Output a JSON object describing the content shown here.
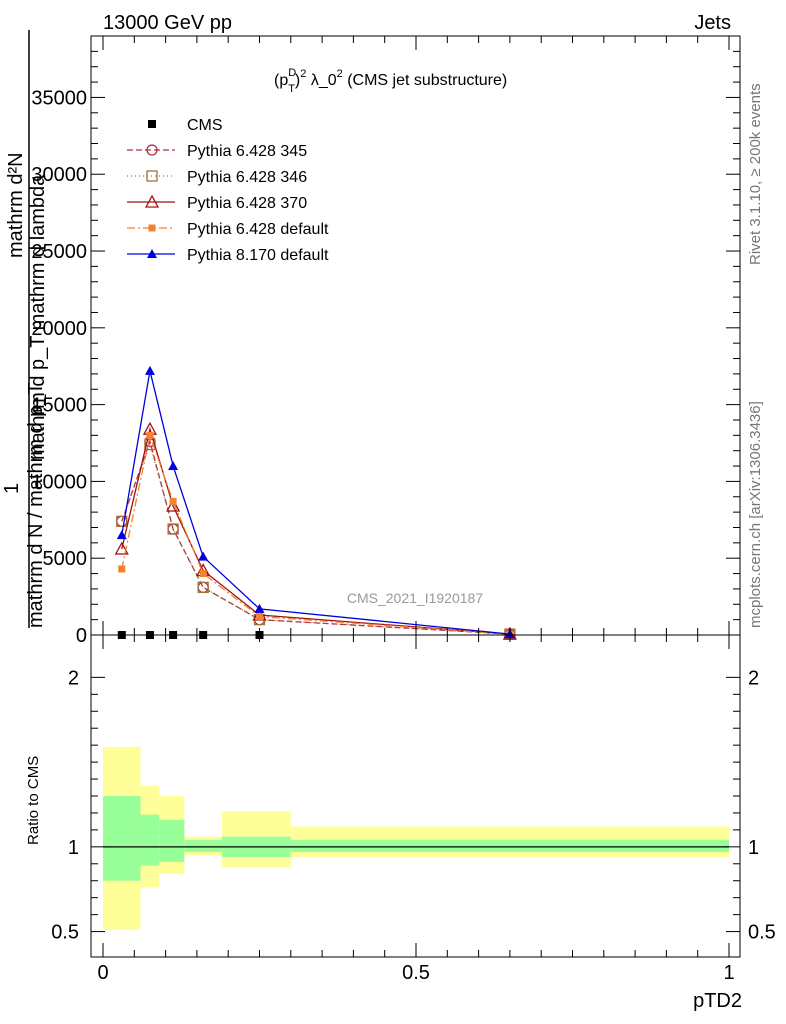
{
  "header": {
    "left": "13000 GeV pp",
    "right": "Jets"
  },
  "side_labels": {
    "rivet": "Rivet 3.1.10, ≥ 200k events",
    "mcplots": "mcplots.cern.ch [arXiv:1306.3436]"
  },
  "watermark": "CMS_2021_I1920187",
  "chart_data": [
    {
      "type": "line",
      "title": "(p_T^D)^2 λ_0^2 (CMS jet substructure)",
      "title_parts": {
        "base": "(p",
        "sup": "D",
        "sub": "T",
        "close": ")",
        "pow": "2",
        "rest": " λ_0",
        "rest_pow": "2",
        "tail": " (CMS jet substructure)"
      },
      "ylabel_lines": [
        "mathrm d²N",
        "1",
        "mathrm d N / mathrm d p_T mathrm d p_T mathrm d lambda"
      ],
      "ylabel_display": {
        "numerator": "mathrm d²N",
        "numerator_2": "mathrm d p_T mathrm d lambda",
        "prefix": "1",
        "denominator": "mathrm d N / mathrm d p_T"
      },
      "xlim": [
        0,
        1
      ],
      "ylim": [
        0,
        39000
      ],
      "yticks": [
        0,
        5000,
        10000,
        15000,
        20000,
        25000,
        30000,
        35000
      ],
      "ytick_labels": [
        "0",
        "5000",
        "10000",
        "15000",
        "20000",
        "25000",
        "30000",
        "35000"
      ],
      "series": [
        {
          "name": "CMS",
          "color": "#000000",
          "marker": "square",
          "dash": "none",
          "x": [
            0.03,
            0.075,
            0.112,
            0.16,
            0.25
          ],
          "y": [
            0,
            0,
            0,
            0,
            0
          ]
        },
        {
          "name": "Pythia 6.428 345",
          "color": "#b03040",
          "marker": "circle-open",
          "dash": "6,3",
          "x": [
            0.03,
            0.075,
            0.112,
            0.16,
            0.25,
            0.65
          ],
          "y": [
            7400,
            12600,
            6900,
            3100,
            1000,
            60
          ]
        },
        {
          "name": "Pythia 6.428 346",
          "color": "#a07040",
          "marker": "square-open",
          "dash": "1,3",
          "x": [
            0.03,
            0.075,
            0.112,
            0.16,
            0.25,
            0.65
          ],
          "y": [
            7400,
            12400,
            6900,
            3100,
            1000,
            60
          ]
        },
        {
          "name": "Pythia 6.428 370",
          "color": "#a01010",
          "marker": "triangle-open",
          "dash": "none",
          "x": [
            0.03,
            0.075,
            0.112,
            0.16,
            0.25,
            0.65
          ],
          "y": [
            5600,
            13400,
            8400,
            4200,
            1300,
            60
          ]
        },
        {
          "name": "Pythia 6.428 default",
          "color": "#f58030",
          "marker": "square-small",
          "dash": "8,3,2,3",
          "x": [
            0.03,
            0.075,
            0.112,
            0.16,
            0.25,
            0.65
          ],
          "y": [
            4300,
            13000,
            8700,
            4000,
            1200,
            60
          ]
        },
        {
          "name": "Pythia 8.170 default",
          "color": "#0000dd",
          "marker": "triangle",
          "dash": "none",
          "x": [
            0.03,
            0.075,
            0.112,
            0.16,
            0.25,
            0.65
          ],
          "y": [
            6500,
            17200,
            11000,
            5100,
            1700,
            60
          ]
        }
      ]
    },
    {
      "type": "area",
      "ylabel": "Ratio to CMS",
      "xlabel": "pTD2",
      "xlim": [
        0,
        1
      ],
      "ylim": [
        0.35,
        2.25
      ],
      "yticks": [
        0.5,
        1,
        2
      ],
      "ytick_labels": [
        "0.5",
        "1",
        "2"
      ],
      "xticks": [
        0,
        0.5,
        1
      ],
      "xtick_labels": [
        "0",
        "0.5",
        "1"
      ],
      "bins": [
        {
          "lo": 0.0,
          "hi": 0.06,
          "green": [
            0.8,
            1.3
          ],
          "yellow": [
            0.51,
            1.59
          ]
        },
        {
          "lo": 0.06,
          "hi": 0.09,
          "green": [
            0.89,
            1.19
          ],
          "yellow": [
            0.76,
            1.36
          ]
        },
        {
          "lo": 0.09,
          "hi": 0.13,
          "green": [
            0.91,
            1.16
          ],
          "yellow": [
            0.84,
            1.3
          ]
        },
        {
          "lo": 0.13,
          "hi": 0.19,
          "green": [
            0.97,
            1.04
          ],
          "yellow": [
            0.95,
            1.06
          ]
        },
        {
          "lo": 0.19,
          "hi": 0.3,
          "green": [
            0.94,
            1.06
          ],
          "yellow": [
            0.88,
            1.21
          ]
        },
        {
          "lo": 0.3,
          "hi": 1.0,
          "green": [
            0.97,
            1.04
          ],
          "yellow": [
            0.94,
            1.12
          ]
        }
      ],
      "reference_line": 1
    }
  ]
}
